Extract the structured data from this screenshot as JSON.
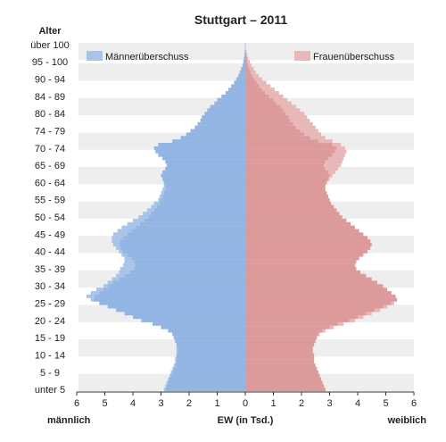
{
  "chart_data": {
    "type": "bar",
    "title": "Stuttgart – 2011",
    "y_axis_title": "Alter",
    "xlabel": "EW (in Tsd.)",
    "left_label": "männlich",
    "right_label": "weiblich",
    "xlim": [
      -6,
      6
    ],
    "x_ticks": [
      -6,
      -5,
      -4,
      -3,
      -2,
      -1,
      0,
      1,
      2,
      3,
      4,
      5,
      6
    ],
    "x_tick_labels": [
      "6",
      "5",
      "4",
      "3",
      "2",
      "1",
      "0",
      "1",
      "2",
      "3",
      "4",
      "5",
      "6"
    ],
    "age_tick_labels": [
      {
        "age": 0,
        "label": "unter 5"
      },
      {
        "age": 5,
        "label": "5 - 9"
      },
      {
        "age": 10,
        "label": "10 - 14"
      },
      {
        "age": 15,
        "label": "15 - 19"
      },
      {
        "age": 20,
        "label": "20 - 24"
      },
      {
        "age": 25,
        "label": "25 - 29"
      },
      {
        "age": 30,
        "label": "30 - 34"
      },
      {
        "age": 35,
        "label": "35 - 39"
      },
      {
        "age": 40,
        "label": "40 - 44"
      },
      {
        "age": 45,
        "label": "45 - 49"
      },
      {
        "age": 50,
        "label": "50 - 54"
      },
      {
        "age": 55,
        "label": "55 - 59"
      },
      {
        "age": 60,
        "label": "60 - 64"
      },
      {
        "age": 65,
        "label": "65 - 69"
      },
      {
        "age": 70,
        "label": "70 - 74"
      },
      {
        "age": 75,
        "label": "74 - 79"
      },
      {
        "age": 80,
        "label": "80 - 84"
      },
      {
        "age": 85,
        "label": "84 - 89"
      },
      {
        "age": 90,
        "label": "90 - 94"
      },
      {
        "age": 95,
        "label": "95 - 100"
      },
      {
        "age": 100,
        "label": "über 100"
      }
    ],
    "legend": [
      {
        "name": "Männerüberschuss",
        "color": "#a8c4e8"
      },
      {
        "name": "Frauenüberschuss",
        "color": "#e8b8b8"
      }
    ],
    "colors": {
      "male": "#93b5e3",
      "female": "#dc9a9a",
      "male_surplus": "#a8c4e8",
      "female_surplus": "#e8b8b8",
      "band": "#eeeeee"
    },
    "grid": false,
    "ages": [
      0,
      1,
      2,
      3,
      4,
      5,
      6,
      7,
      8,
      9,
      10,
      11,
      12,
      13,
      14,
      15,
      16,
      17,
      18,
      19,
      20,
      21,
      22,
      23,
      24,
      25,
      26,
      27,
      28,
      29,
      30,
      31,
      32,
      33,
      34,
      35,
      36,
      37,
      38,
      39,
      40,
      41,
      42,
      43,
      44,
      45,
      46,
      47,
      48,
      49,
      50,
      51,
      52,
      53,
      54,
      55,
      56,
      57,
      58,
      59,
      60,
      61,
      62,
      63,
      64,
      65,
      66,
      67,
      68,
      69,
      70,
      71,
      72,
      73,
      74,
      75,
      76,
      77,
      78,
      79,
      80,
      81,
      82,
      83,
      84,
      85,
      86,
      87,
      88,
      89,
      90,
      91,
      92,
      93,
      94,
      95,
      96,
      97,
      98,
      99,
      100
    ],
    "male": [
      2.9,
      2.85,
      2.8,
      2.75,
      2.7,
      2.65,
      2.6,
      2.55,
      2.5,
      2.5,
      2.45,
      2.45,
      2.45,
      2.45,
      2.5,
      2.55,
      2.6,
      2.75,
      3.0,
      3.3,
      3.7,
      4.0,
      4.3,
      4.6,
      4.9,
      5.2,
      5.5,
      5.65,
      5.5,
      5.3,
      5.05,
      4.9,
      4.75,
      4.6,
      4.5,
      4.45,
      4.35,
      4.3,
      4.3,
      4.4,
      4.5,
      4.6,
      4.7,
      4.75,
      4.75,
      4.7,
      4.55,
      4.4,
      4.2,
      4.0,
      3.8,
      3.65,
      3.5,
      3.35,
      3.25,
      3.1,
      3.05,
      3.0,
      2.95,
      2.9,
      2.9,
      2.95,
      3.0,
      2.95,
      2.85,
      2.8,
      2.85,
      2.95,
      3.1,
      3.2,
      3.25,
      3.1,
      2.6,
      2.3,
      2.1,
      1.95,
      1.8,
      1.7,
      1.6,
      1.55,
      1.45,
      1.35,
      1.25,
      1.1,
      1.0,
      0.85,
      0.7,
      0.6,
      0.5,
      0.4,
      0.32,
      0.25,
      0.2,
      0.15,
      0.1,
      0.07,
      0.05,
      0.03,
      0.02,
      0.01,
      0.01
    ],
    "female": [
      2.85,
      2.8,
      2.75,
      2.7,
      2.65,
      2.6,
      2.55,
      2.5,
      2.45,
      2.45,
      2.45,
      2.4,
      2.4,
      2.45,
      2.5,
      2.55,
      2.65,
      2.85,
      3.15,
      3.5,
      3.9,
      4.2,
      4.5,
      4.8,
      5.05,
      5.3,
      5.4,
      5.35,
      5.2,
      5.05,
      4.9,
      4.7,
      4.5,
      4.3,
      4.1,
      3.95,
      3.9,
      3.95,
      4.05,
      4.2,
      4.35,
      4.45,
      4.5,
      4.45,
      4.35,
      4.2,
      4.05,
      3.9,
      3.75,
      3.6,
      3.45,
      3.35,
      3.25,
      3.15,
      3.05,
      3.0,
      2.95,
      2.9,
      2.85,
      2.85,
      2.9,
      3.0,
      3.1,
      3.2,
      3.3,
      3.4,
      3.45,
      3.5,
      3.55,
      3.6,
      3.55,
      3.4,
      3.1,
      2.85,
      2.7,
      2.6,
      2.5,
      2.4,
      2.3,
      2.2,
      2.1,
      1.95,
      1.8,
      1.65,
      1.5,
      1.35,
      1.2,
      1.05,
      0.9,
      0.75,
      0.6,
      0.48,
      0.38,
      0.3,
      0.22,
      0.16,
      0.11,
      0.07,
      0.04,
      0.02,
      0.01
    ]
  }
}
